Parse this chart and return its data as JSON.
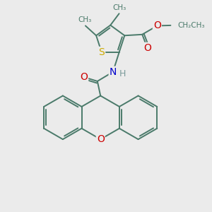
{
  "background_color": "#ebebeb",
  "bond_color": "#4a7a6a",
  "bond_width": 1.4,
  "atoms": {
    "S": {
      "color": "#ccaa00",
      "size": 10
    },
    "O": {
      "color": "#cc0000",
      "size": 10
    },
    "N": {
      "color": "#0000cc",
      "size": 10
    },
    "H": {
      "color": "#7a9a9a",
      "size": 9
    }
  },
  "xlim": [
    0,
    10
  ],
  "ylim": [
    0,
    10
  ]
}
